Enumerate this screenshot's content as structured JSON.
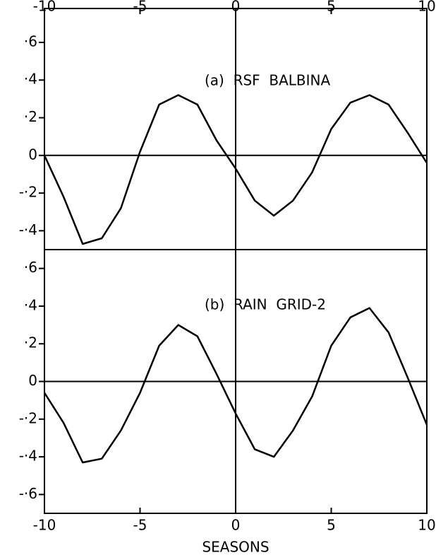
{
  "chart_data": [
    {
      "type": "line",
      "annotation": "(a)  RSF  BALBINA",
      "x": [
        -10,
        -9,
        -8,
        -7,
        -6,
        -5,
        -4,
        -3,
        -2,
        -1,
        0,
        1,
        2,
        3,
        4,
        5,
        6,
        7,
        8,
        9,
        10
      ],
      "series": [
        {
          "color": "#000000",
          "values": [
            0,
            -0.22,
            -0.47,
            -0.44,
            -0.28,
            0.02,
            0.27,
            0.32,
            0.27,
            0.08,
            -0.07,
            -0.24,
            -0.32,
            -0.24,
            -0.09,
            0.14,
            0.28,
            0.32,
            0.27,
            0.12,
            -0.04
          ]
        }
      ],
      "xlim": [
        -10,
        10
      ],
      "xticks": [
        -10,
        -5,
        0,
        5,
        10
      ],
      "ylim": [
        -0.5,
        0.78
      ],
      "yticks": [
        {
          "value": 0.6,
          "label": "·6"
        },
        {
          "value": 0.4,
          "label": "·4"
        },
        {
          "value": 0.2,
          "label": "·2"
        },
        0,
        {
          "value": -0.2,
          "label": "-·2"
        },
        {
          "value": -0.4,
          "label": "-·4"
        }
      ]
    },
    {
      "type": "line",
      "annotation": "(b)  RAIN  GRID-2",
      "xlabel": "SEASONS",
      "x": [
        -10,
        -9,
        -8,
        -7,
        -6,
        -5,
        -4,
        -3,
        -2,
        -1,
        0,
        1,
        2,
        3,
        4,
        5,
        6,
        7,
        8,
        9,
        10
      ],
      "series": [
        {
          "color": "#000000",
          "values": [
            -0.06,
            -0.22,
            -0.43,
            -0.41,
            -0.26,
            -0.06,
            0.19,
            0.3,
            0.24,
            0.04,
            -0.17,
            -0.36,
            -0.4,
            -0.26,
            -0.08,
            0.19,
            0.34,
            0.39,
            0.26,
            0.02,
            -0.23
          ]
        }
      ],
      "xlim": [
        -10,
        10
      ],
      "xticks": [
        -10,
        -5,
        0,
        5,
        10
      ],
      "ylim": [
        -0.7,
        0.7
      ],
      "yticks": [
        {
          "value": 0.6,
          "label": "·6"
        },
        {
          "value": 0.4,
          "label": "·4"
        },
        {
          "value": 0.2,
          "label": "·2"
        },
        0,
        {
          "value": -0.2,
          "label": "-·2"
        },
        {
          "value": -0.4,
          "label": "-·4"
        },
        {
          "value": -0.6,
          "label": "-·6"
        }
      ]
    }
  ]
}
